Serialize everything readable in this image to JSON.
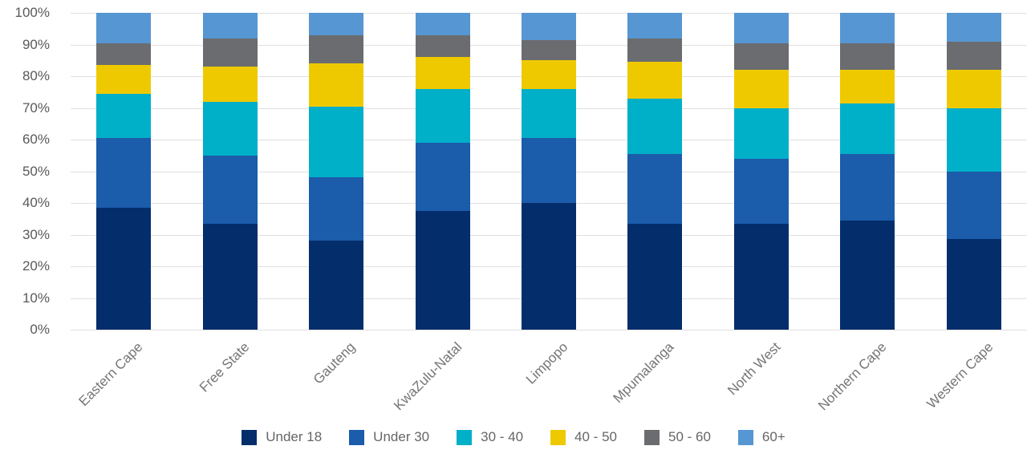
{
  "chart_data": {
    "type": "bar",
    "variant": "stacked-100-percent",
    "title": "",
    "xlabel": "",
    "ylabel": "",
    "ylim": [
      0,
      100
    ],
    "grid": "horizontal",
    "legend_position": "bottom",
    "y_ticks": [
      "0%",
      "10%",
      "20%",
      "30%",
      "40%",
      "50%",
      "60%",
      "70%",
      "80%",
      "90%",
      "100%"
    ],
    "categories": [
      "Eastern Cape",
      "Free State",
      "Gauteng",
      "KwaZulu-Natal",
      "Limpopo",
      "Mpumalanga",
      "North West",
      "Northern Cape",
      "Western Cape"
    ],
    "series": [
      {
        "name": "Under 18",
        "color": "#032d6b",
        "values": [
          38.5,
          33.5,
          28.0,
          37.5,
          40.0,
          33.5,
          33.5,
          34.5,
          28.5
        ]
      },
      {
        "name": "Under 30",
        "color": "#1b5cab",
        "values": [
          22.0,
          21.5,
          20.0,
          21.5,
          20.5,
          22.0,
          20.5,
          21.0,
          21.5
        ]
      },
      {
        "name": "30 - 40",
        "color": "#00afc8",
        "values": [
          14.0,
          17.0,
          22.5,
          17.0,
          15.5,
          17.5,
          16.0,
          16.0,
          20.0
        ]
      },
      {
        "name": "40 - 50",
        "color": "#efc900",
        "values": [
          9.0,
          11.0,
          13.5,
          10.0,
          9.0,
          11.5,
          12.0,
          10.5,
          12.0
        ]
      },
      {
        "name": "50 - 60",
        "color": "#6b6c6f",
        "values": [
          7.0,
          9.0,
          9.0,
          7.0,
          6.5,
          7.5,
          8.5,
          8.5,
          9.0
        ]
      },
      {
        "name": "60+",
        "color": "#5696d2",
        "values": [
          9.5,
          8.0,
          7.0,
          7.0,
          8.5,
          8.0,
          9.5,
          9.5,
          9.0
        ]
      }
    ],
    "colors": {
      "gridline": "#e0e0e0",
      "y_tick_text": "#595959",
      "x_tick_text": "#757575",
      "legend_text": "#666666"
    }
  },
  "layout_text": {}
}
